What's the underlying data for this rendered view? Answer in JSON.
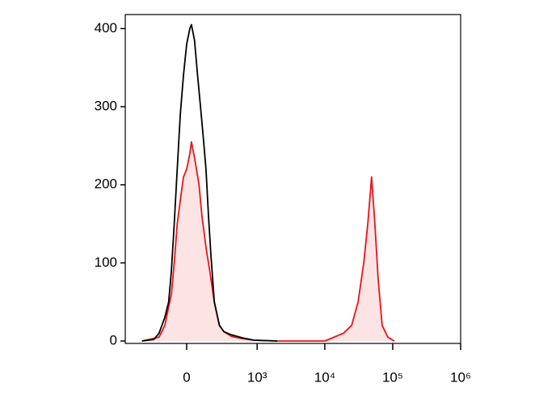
{
  "chart_data": {
    "type": "histogram-overlay",
    "xscale": "biexponential",
    "xlim": [
      -730,
      1000000
    ],
    "xticks": [
      0,
      {
        "value": 1000,
        "label": "10³"
      },
      {
        "value": 10000,
        "label": "10⁴"
      },
      {
        "value": 100000,
        "label": "10⁵"
      },
      {
        "value": 1000000,
        "label": "10⁶"
      }
    ],
    "ylim": [
      0,
      418
    ],
    "yticks": [
      0,
      100,
      200,
      300,
      400
    ],
    "series": [
      {
        "color": "#000000",
        "x": [
          -400,
          -250,
          -200,
          -150,
          -120,
          -100,
          -80,
          -60,
          -40,
          -20,
          0,
          20,
          30,
          50,
          70,
          90,
          110,
          130,
          150,
          170,
          200,
          250,
          300,
          400,
          600,
          900,
          2000
        ],
        "values": [
          0,
          2,
          10,
          30,
          50,
          90,
          150,
          220,
          290,
          340,
          380,
          400,
          405,
          385,
          340,
          300,
          260,
          220,
          160,
          110,
          50,
          20,
          12,
          8,
          4,
          1,
          0
        ]
      },
      {
        "color": "#e8141b",
        "fill": "#fce4e4",
        "x": [
          -400,
          -200,
          -150,
          -100,
          -80,
          -60,
          -40,
          -20,
          0,
          20,
          30,
          50,
          80,
          100,
          130,
          160,
          200,
          250,
          300,
          400,
          600,
          900,
          2000,
          10000,
          18900,
          24800,
          30900,
          37400,
          42900,
          48900,
          54600,
          60900,
          70000,
          84800,
          105600
        ],
        "values": [
          0,
          5,
          20,
          60,
          100,
          150,
          180,
          210,
          220,
          240,
          255,
          235,
          200,
          160,
          120,
          90,
          50,
          20,
          12,
          6,
          3,
          1,
          0,
          0,
          10,
          20,
          50,
          100,
          150,
          210,
          150,
          80,
          20,
          5,
          0
        ]
      }
    ]
  }
}
